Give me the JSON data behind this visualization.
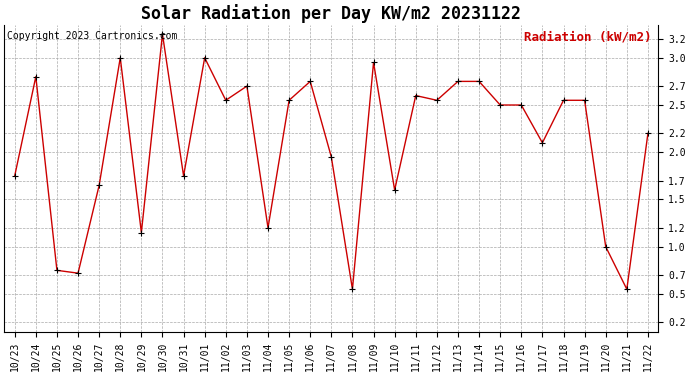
{
  "title": "Solar Radiation per Day KW/m2 20231122",
  "copyright_text": "Copyright 2023 Cartronics.com",
  "legend_label": "Radiation (kW/m2)",
  "dates": [
    "10/23",
    "10/24",
    "10/25",
    "10/26",
    "10/27",
    "10/28",
    "10/29",
    "10/30",
    "10/31",
    "11/01",
    "11/02",
    "11/03",
    "11/04",
    "11/05",
    "11/06",
    "11/07",
    "11/08",
    "11/09",
    "11/10",
    "11/11",
    "11/12",
    "11/13",
    "11/14",
    "11/15",
    "11/16",
    "11/17",
    "11/18",
    "11/19",
    "11/20",
    "11/21",
    "11/22"
  ],
  "values": [
    1.75,
    2.8,
    0.75,
    0.72,
    1.65,
    3.0,
    1.15,
    3.25,
    1.75,
    3.0,
    2.55,
    2.7,
    1.2,
    2.55,
    2.75,
    1.95,
    0.55,
    2.95,
    1.6,
    2.6,
    2.55,
    2.75,
    2.75,
    2.5,
    2.5,
    2.1,
    2.55,
    2.55,
    1.0,
    0.55,
    2.2
  ],
  "line_color": "#cc0000",
  "marker": "+",
  "marker_color": "black",
  "bg_color": "white",
  "grid_color": "#aaaaaa",
  "ylim": [
    0.1,
    3.35
  ],
  "yticks": [
    0.2,
    0.5,
    0.7,
    1.0,
    1.2,
    1.5,
    1.7,
    2.0,
    2.2,
    2.5,
    2.7,
    3.0,
    3.2
  ],
  "title_fontsize": 12,
  "copyright_fontsize": 7,
  "legend_fontsize": 9,
  "tick_fontsize": 7,
  "fig_width": 6.9,
  "fig_height": 3.75,
  "dpi": 100
}
